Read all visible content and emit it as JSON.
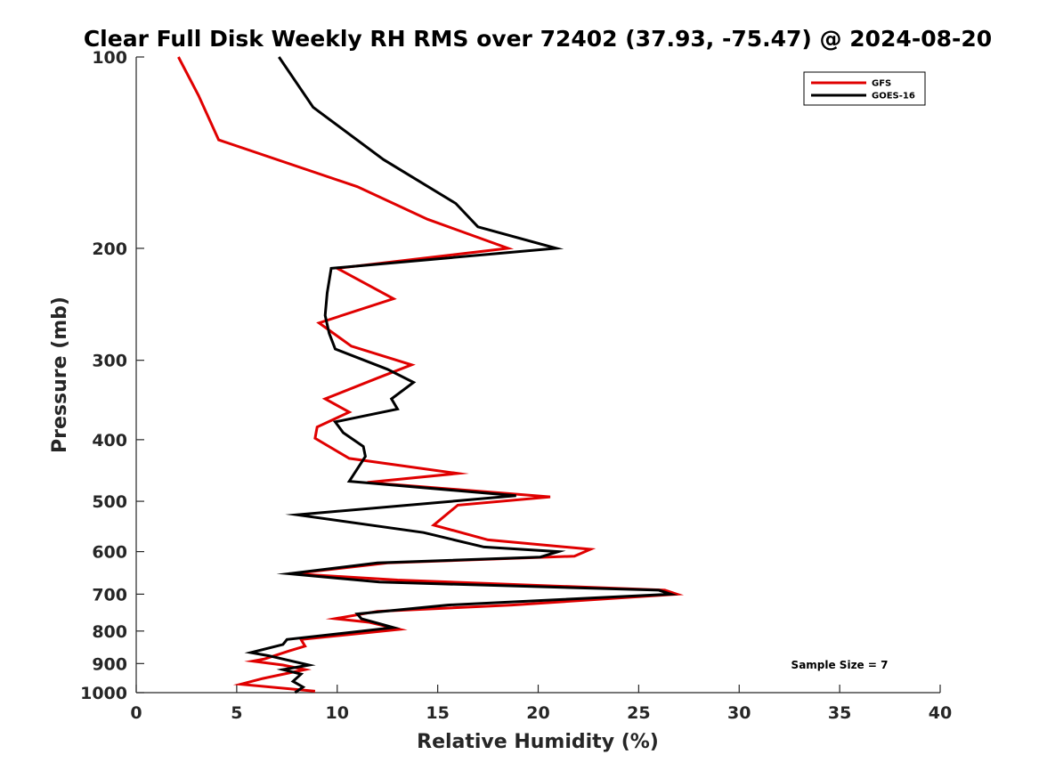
{
  "chart_data": {
    "type": "line",
    "title": "Clear Full Disk Weekly RH RMS over 72402 (37.93, -75.47) @ 2024-08-20",
    "xlabel": "Relative Humidity (%)",
    "ylabel": "Pressure (mb)",
    "xlim": [
      0,
      40
    ],
    "ylim": [
      100,
      1000
    ],
    "y_scale": "log",
    "y_reversed": true,
    "xticks": [
      0,
      5,
      10,
      15,
      20,
      25,
      30,
      35,
      40
    ],
    "yticks": [
      100,
      200,
      300,
      400,
      500,
      600,
      700,
      800,
      900,
      1000
    ],
    "grid": false,
    "legend_position": "top-right",
    "annotation": "Sample Size = 7",
    "series": [
      {
        "name": "GFS",
        "color": "#e00000",
        "points": [
          [
            2.1,
            100
          ],
          [
            3.1,
            115
          ],
          [
            4.1,
            135
          ],
          [
            11.0,
            160
          ],
          [
            14.5,
            180
          ],
          [
            18.5,
            200
          ],
          [
            10.0,
            215
          ],
          [
            12.8,
            240
          ],
          [
            9.1,
            262
          ],
          [
            10.7,
            285
          ],
          [
            13.7,
            305
          ],
          [
            12.0,
            320
          ],
          [
            9.4,
            345
          ],
          [
            10.6,
            362
          ],
          [
            9.0,
            382
          ],
          [
            8.9,
            398
          ],
          [
            10.6,
            428
          ],
          [
            16.0,
            452
          ],
          [
            11.5,
            467
          ],
          [
            20.6,
            492
          ],
          [
            16.0,
            507
          ],
          [
            14.8,
            545
          ],
          [
            17.5,
            575
          ],
          [
            22.6,
            595
          ],
          [
            21.8,
            610
          ],
          [
            12.5,
            625
          ],
          [
            7.8,
            650
          ],
          [
            13.0,
            665
          ],
          [
            26.3,
            690
          ],
          [
            26.9,
            700
          ],
          [
            18.7,
            728
          ],
          [
            12.0,
            745
          ],
          [
            9.9,
            765
          ],
          [
            11.6,
            775
          ],
          [
            13.1,
            795
          ],
          [
            8.2,
            825
          ],
          [
            8.4,
            845
          ],
          [
            7.6,
            860
          ],
          [
            6.4,
            885
          ],
          [
            5.8,
            892
          ],
          [
            7.3,
            905
          ],
          [
            8.4,
            920
          ],
          [
            6.3,
            950
          ],
          [
            5.2,
            970
          ],
          [
            8.9,
            995
          ]
        ]
      },
      {
        "name": "GOES-16",
        "color": "#000000",
        "points": [
          [
            7.1,
            100
          ],
          [
            8.8,
            120
          ],
          [
            12.3,
            145
          ],
          [
            15.9,
            170
          ],
          [
            17.0,
            185
          ],
          [
            20.9,
            200
          ],
          [
            9.7,
            215
          ],
          [
            9.5,
            235
          ],
          [
            9.4,
            255
          ],
          [
            9.6,
            272
          ],
          [
            9.9,
            288
          ],
          [
            12.5,
            310
          ],
          [
            13.8,
            325
          ],
          [
            12.7,
            345
          ],
          [
            13.0,
            358
          ],
          [
            9.9,
            375
          ],
          [
            10.3,
            390
          ],
          [
            11.3,
            410
          ],
          [
            11.4,
            425
          ],
          [
            10.6,
            465
          ],
          [
            18.9,
            490
          ],
          [
            8.0,
            525
          ],
          [
            14.3,
            560
          ],
          [
            17.3,
            590
          ],
          [
            21.0,
            600
          ],
          [
            20.1,
            612
          ],
          [
            12.0,
            625
          ],
          [
            7.6,
            650
          ],
          [
            12.1,
            670
          ],
          [
            26.0,
            690
          ],
          [
            26.6,
            700
          ],
          [
            15.5,
            728
          ],
          [
            11.0,
            752
          ],
          [
            11.2,
            765
          ],
          [
            12.8,
            790
          ],
          [
            7.5,
            825
          ],
          [
            7.3,
            840
          ],
          [
            5.7,
            865
          ],
          [
            6.6,
            875
          ],
          [
            8.6,
            905
          ],
          [
            7.3,
            920
          ],
          [
            8.2,
            935
          ],
          [
            7.8,
            960
          ],
          [
            8.3,
            980
          ],
          [
            7.9,
            1000
          ]
        ]
      }
    ]
  }
}
